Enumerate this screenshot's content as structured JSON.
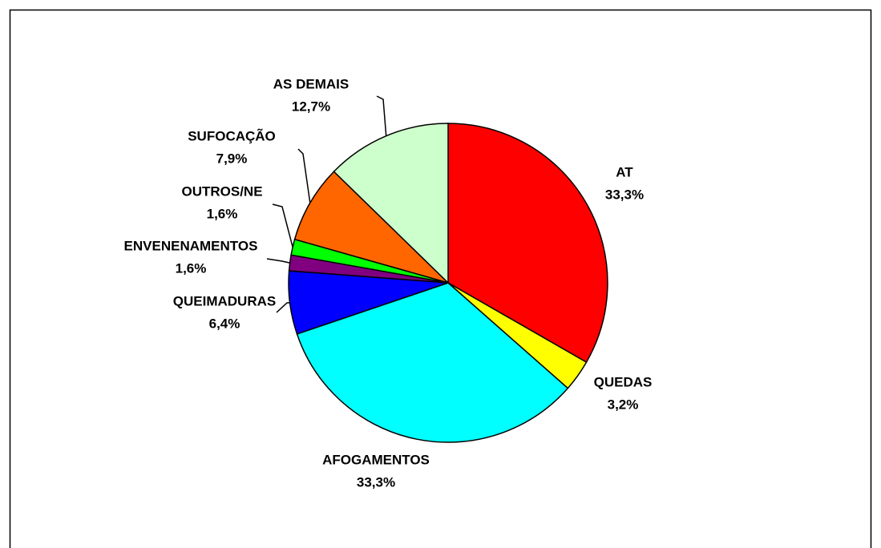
{
  "chart_data": {
    "type": "pie",
    "categories": [
      "AT",
      "QUEDAS",
      "AFOGAMENTOS",
      "QUEIMADURAS",
      "ENVENENAMENTOS",
      "OUTROS/NE",
      "SUFOCAÇÃO",
      "AS DEMAIS"
    ],
    "values": [
      33.3,
      3.2,
      33.3,
      6.4,
      1.6,
      1.6,
      7.9,
      12.7
    ],
    "value_labels": [
      "33,3%",
      "3,2%",
      "33,3%",
      "6,4%",
      "1,6%",
      "1,6%",
      "7,9%",
      "12,7%"
    ],
    "colors": [
      "#ff0000",
      "#ffff00",
      "#00ffff",
      "#0000ff",
      "#800080",
      "#00ff00",
      "#ff6600",
      "#ccffcc"
    ]
  }
}
